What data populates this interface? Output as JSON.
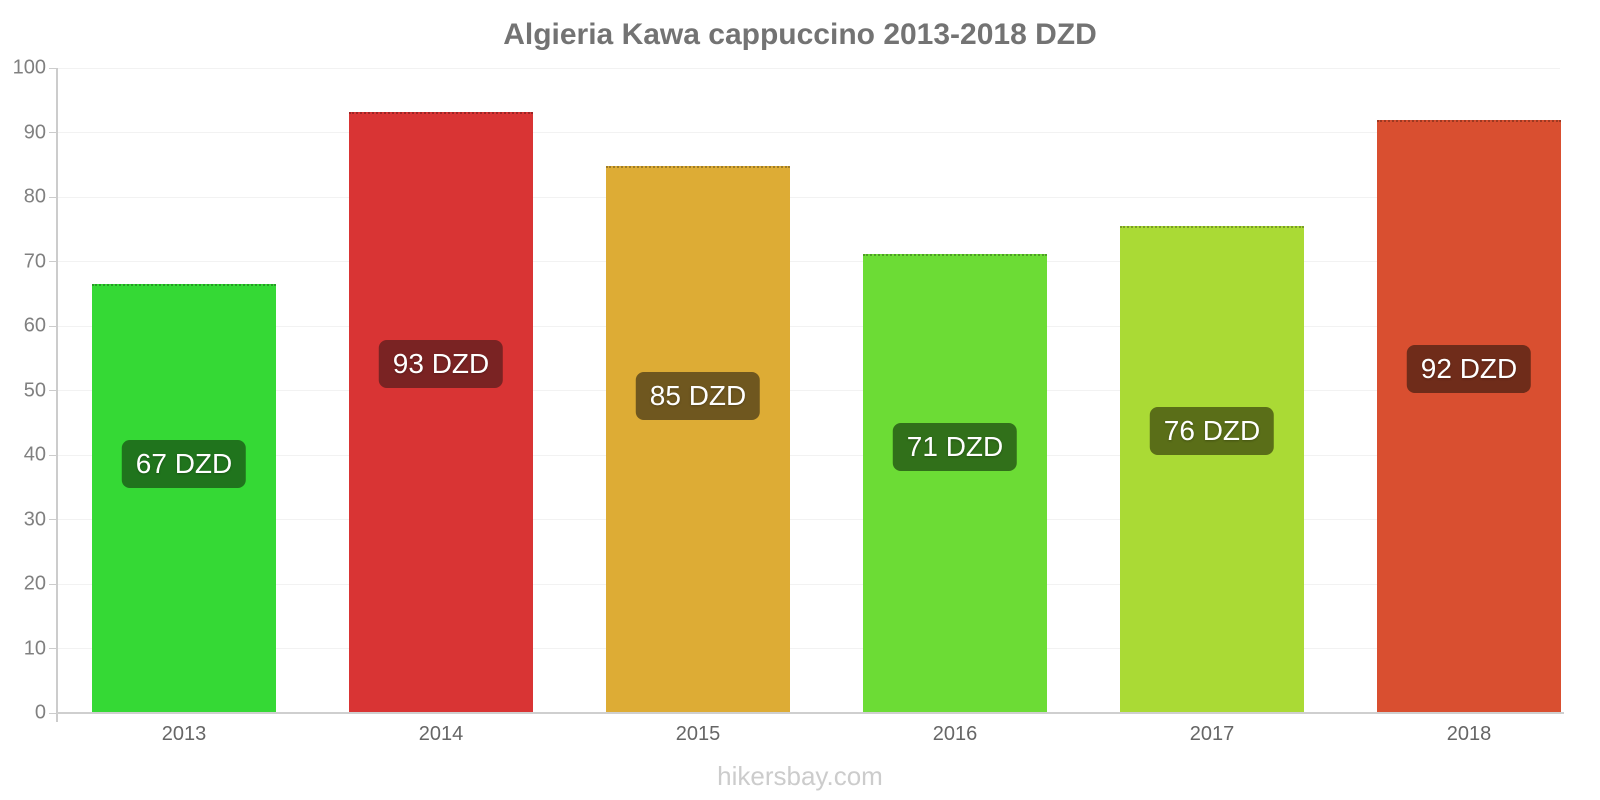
{
  "title": "Algieria Kawa cappuccino 2013-2018 DZD",
  "source": "hikersbay.com",
  "unit": "DZD",
  "chart_data": {
    "type": "bar",
    "title": "Algieria Kawa cappuccino 2013-2018 DZD",
    "categories": [
      "2013",
      "2014",
      "2015",
      "2016",
      "2017",
      "2018"
    ],
    "values": [
      67,
      93,
      85,
      71,
      76,
      92
    ],
    "values_precise": [
      66.5,
      93.2,
      84.8,
      71.2,
      75.5,
      91.9
    ],
    "bar_labels": [
      "67 DZD",
      "93 DZD",
      "85 DZD",
      "71 DZD",
      "76 DZD",
      "92 DZD"
    ],
    "xlabel": "",
    "ylabel": "",
    "ylim": [
      0,
      100
    ],
    "yticks": [
      0,
      10,
      20,
      30,
      40,
      50,
      60,
      70,
      80,
      90,
      100
    ],
    "grid": true,
    "legend_position": "none",
    "bar_colors": [
      "#35d935",
      "#d93434",
      "#ddac35",
      "#6cdc35",
      "#aada35",
      "#d94f30"
    ],
    "label_bg_colors": [
      "#20741d",
      "#7a2323",
      "#6f571f",
      "#31701a",
      "#5a6e18",
      "#6f2c1a"
    ]
  },
  "colors": {
    "background": "#ffffff",
    "title_text": "#737373",
    "axis_line": "#cccccc",
    "baseline": "#cfcfcf",
    "gridline": "#f2f2f2",
    "y_tick_text": "#808080",
    "x_tick_text": "#666666",
    "value_text": "#ffffff",
    "source_text": "#cccccc"
  }
}
